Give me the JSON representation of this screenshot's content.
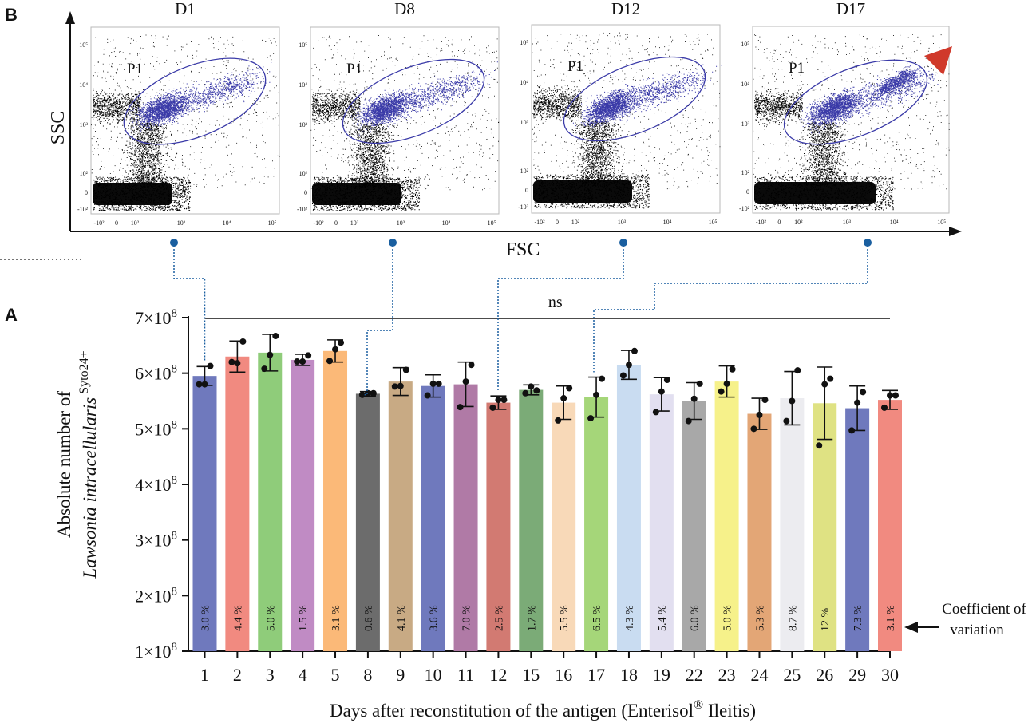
{
  "panel_b": {
    "letter": "B",
    "y_axis_title": "SSC",
    "x_axis_title": "FSC",
    "gate_label": "P1",
    "plots": [
      "D1",
      "D8",
      "D12",
      "D17"
    ],
    "y_ticks": [
      "10⁵",
      "10⁴",
      "10³",
      "10²",
      "0",
      "-10²"
    ],
    "x_ticks": [
      "-10²",
      "0",
      "10²",
      "10³",
      "10⁴",
      "10⁵"
    ],
    "arrowhead_color": "#d0392b",
    "events_color": "#000000",
    "gated_color": "#3a3aa8"
  },
  "chart_data": {
    "type": "bar",
    "panel_letter": "A",
    "title": "",
    "xlabel": "Days after reconstitution of the antigen (Enterisol® Ileitis)",
    "xlabel_parts": {
      "main": "Days after reconstitution of the antigen (Enterisol",
      "sup": "®",
      "tail": " Ileitis)"
    },
    "ylabel_line1": "Absolute number of",
    "ylabel_line2": "Lawsonia intracellularis",
    "ylabel_sup": "Syto24+",
    "ylim": [
      100000000,
      700000000
    ],
    "yticks": [
      {
        "value": 100000000,
        "mantissa": "1×10",
        "exp": "8"
      },
      {
        "value": 200000000,
        "mantissa": "2×10",
        "exp": "8"
      },
      {
        "value": 300000000,
        "mantissa": "3×10",
        "exp": "8"
      },
      {
        "value": 400000000,
        "mantissa": "4×10",
        "exp": "8"
      },
      {
        "value": 500000000,
        "mantissa": "5×10",
        "exp": "8"
      },
      {
        "value": 600000000,
        "mantissa": "6×10",
        "exp": "8"
      },
      {
        "value": 700000000,
        "mantissa": "7×10",
        "exp": "8"
      }
    ],
    "categories": [
      "1",
      "2",
      "3",
      "4",
      "5",
      "8",
      "9",
      "10",
      "11",
      "12",
      "15",
      "16",
      "17",
      "18",
      "19",
      "22",
      "23",
      "24",
      "25",
      "26",
      "29",
      "30"
    ],
    "values": [
      595000000,
      630000000,
      637000000,
      624000000,
      640000000,
      563000000,
      585000000,
      577000000,
      580000000,
      547000000,
      570000000,
      547000000,
      557000000,
      615000000,
      562000000,
      550000000,
      585000000,
      527000000,
      555000000,
      546000000,
      537000000,
      552000000
    ],
    "error": [
      17000000,
      28000000,
      33000000,
      10000000,
      20000000,
      4000000,
      25000000,
      20000000,
      40000000,
      12000000,
      9000000,
      30000000,
      36000000,
      26000000,
      30000000,
      33000000,
      28000000,
      28000000,
      48000000,
      65000000,
      40000000,
      17000000
    ],
    "points": [
      [
        580000000,
        580000000,
        613000000
      ],
      [
        620000000,
        618000000,
        657000000
      ],
      [
        608000000,
        633000000,
        667000000
      ],
      [
        621000000,
        621000000,
        632000000
      ],
      [
        622000000,
        643000000,
        655000000
      ],
      [
        561000000,
        564000000,
        564000000
      ],
      [
        576000000,
        577000000,
        606000000
      ],
      [
        560000000,
        581000000,
        581000000
      ],
      [
        539000000,
        585000000,
        615000000
      ],
      [
        538000000,
        552000000,
        552000000
      ],
      [
        564000000,
        576000000,
        569000000
      ],
      [
        515000000,
        555000000,
        573000000
      ],
      [
        519000000,
        561000000,
        590000000
      ],
      [
        596000000,
        615000000,
        640000000
      ],
      [
        530000000,
        567000000,
        588000000
      ],
      [
        514000000,
        554000000,
        581000000
      ],
      [
        567000000,
        581000000,
        607000000
      ],
      [
        500000000,
        525000000,
        552000000
      ],
      [
        514000000,
        550000000,
        605000000
      ],
      [
        470000000,
        580000000,
        590000000
      ],
      [
        497000000,
        547000000,
        566000000
      ],
      [
        538000000,
        560000000,
        560000000
      ]
    ],
    "cv_labels": [
      "3.0 %",
      "4.4 %",
      "5.0 %",
      "1.5 %",
      "3.1 %",
      "0.6 %",
      "4.1 %",
      "3.6 %",
      "7.0 %",
      "2.5 %",
      "1.7 %",
      "5.5 %",
      "6.5 %",
      "4.3 %",
      "5.4 %",
      "6.0 %",
      "5.0 %",
      "5.3 %",
      "8.7 %",
      "12 %",
      "7.3 %",
      "3.1 %"
    ],
    "colors": [
      "#6f79bd",
      "#f18a80",
      "#8fcc7a",
      "#c08bc4",
      "#fbb978",
      "#6c6c6c",
      "#c8aa84",
      "#6f79bd",
      "#b07aa6",
      "#d27a72",
      "#7bab77",
      "#f8d9b8",
      "#a5d679",
      "#c9dcf1",
      "#e2dff0",
      "#a8a8a8",
      "#f6f18a",
      "#e3a676",
      "#ececf0",
      "#dfe283",
      "#6f79bd",
      "#f18a80"
    ],
    "significance": {
      "label": "ns",
      "from": "1",
      "to": "30",
      "value": 700000000
    },
    "annotation": {
      "line1": "Coefficient of",
      "line2": "variation"
    },
    "links": [
      {
        "plot": "D1",
        "day": "1"
      },
      {
        "plot": "D8",
        "day": "8"
      },
      {
        "plot": "D12",
        "day": "12"
      },
      {
        "plot": "D17",
        "day": "17"
      }
    ],
    "link_color": "#1a5fa0"
  }
}
